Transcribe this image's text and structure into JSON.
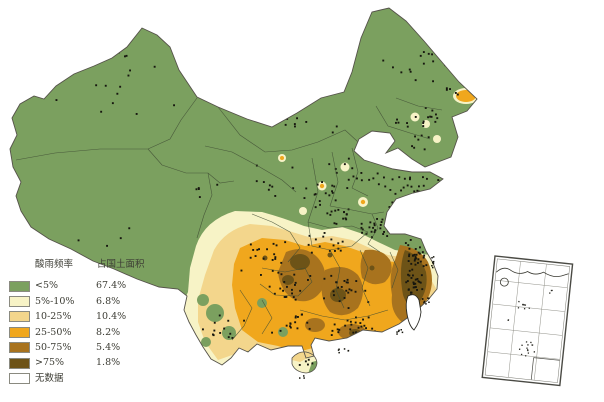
{
  "legend": {
    "col_frequency": "酸雨频率",
    "col_area": "占国土面积",
    "items": [
      {
        "label": "<5%",
        "area": "67.4%",
        "color": "#7ba05f"
      },
      {
        "label": "5%-10%",
        "area": "6.8%",
        "color": "#f7f3c6"
      },
      {
        "label": "10-25%",
        "area": "10.4%",
        "color": "#f3d68c"
      },
      {
        "label": "25-50%",
        "area": "8.2%",
        "color": "#f0a71d"
      },
      {
        "label": "50-75%",
        "area": "5.4%",
        "color": "#a8731e"
      },
      {
        "label": ">75%",
        "area": "1.8%",
        "color": "#6d5317"
      }
    ],
    "no_data": {
      "label": "无数据",
      "color": "#ffffff"
    }
  },
  "map": {
    "sea_color": "#ffffff",
    "coast_color": "#55524a",
    "province_border_color": "#3f4c34",
    "station_dot_color": "#17170f"
  }
}
